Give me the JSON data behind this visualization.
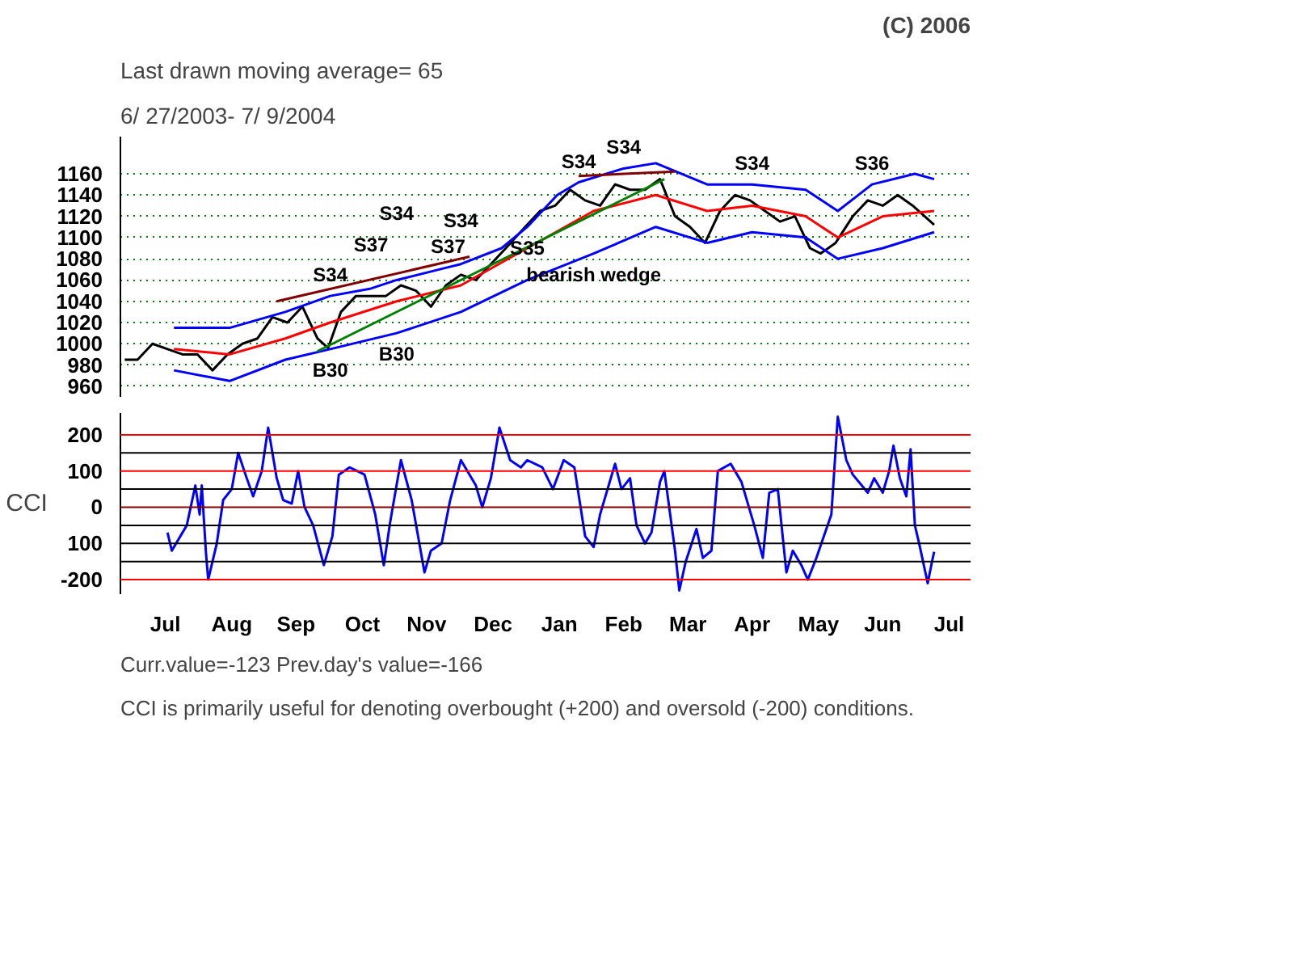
{
  "chart_data": [
    {
      "type": "line",
      "title": "Last drawn moving average= 65",
      "subtitle": "6/ 27/2003- 7/ 9/2004",
      "annotations": [
        "(C) 2006",
        {
          "text": "S34",
          "x": "2003-10-01",
          "y": 1045
        },
        {
          "text": "S37",
          "x": "2003-10-20",
          "y": 1052
        },
        {
          "text": "S34",
          "x": "2003-11-01",
          "y": 1060
        },
        {
          "text": "S37",
          "x": "2003-11-25",
          "y": 1072
        },
        {
          "text": "S34",
          "x": "2003-12-01",
          "y": 1075
        },
        {
          "text": "S35",
          "x": "2004-01-01",
          "y": 1110
        },
        {
          "text": "S34",
          "x": "2004-01-25",
          "y": 1152
        },
        {
          "text": "S34",
          "x": "2004-02-15",
          "y": 1165
        },
        {
          "text": "S34",
          "x": "2004-04-15",
          "y": 1150
        },
        {
          "text": "S36",
          "x": "2004-06-10",
          "y": 1150
        },
        {
          "text": "bearish wedge",
          "x": "2004-02-01",
          "y": 1085
        },
        {
          "text": "B30",
          "x": "2003-10-01",
          "y": 995
        },
        {
          "text": "B30",
          "x": "2003-11-01",
          "y": 1010
        }
      ],
      "xlim": [
        "2003-06-25",
        "2004-07-26"
      ],
      "ylim": [
        950,
        1195
      ],
      "yticks": [
        960,
        980,
        1000,
        1020,
        1040,
        1060,
        1080,
        1100,
        1120,
        1140,
        1160
      ],
      "tick_labels": "y",
      "grid": "y",
      "marker": "none",
      "line_style": "solid",
      "series": [
        {
          "color": "#000000",
          "x": [
            "2003-06-27",
            "2003-07-03",
            "2003-07-10",
            "2003-07-17",
            "2003-07-24",
            "2003-07-31",
            "2003-08-07",
            "2003-08-14",
            "2003-08-21",
            "2003-08-28",
            "2003-09-04",
            "2003-09-11",
            "2003-09-18",
            "2003-09-25",
            "2003-09-30",
            "2003-10-06",
            "2003-10-13",
            "2003-10-20",
            "2003-10-27",
            "2003-11-03",
            "2003-11-10",
            "2003-11-17",
            "2003-11-24",
            "2003-12-01",
            "2003-12-08",
            "2003-12-15",
            "2003-12-22",
            "2003-12-31",
            "2004-01-07",
            "2004-01-14",
            "2004-01-21",
            "2004-01-28",
            "2004-02-04",
            "2004-02-11",
            "2004-02-18",
            "2004-02-25",
            "2004-03-03",
            "2004-03-10",
            "2004-03-17",
            "2004-03-24",
            "2004-03-31",
            "2004-04-07",
            "2004-04-14",
            "2004-04-21",
            "2004-04-28",
            "2004-05-05",
            "2004-05-12",
            "2004-05-17",
            "2004-05-24",
            "2004-06-01",
            "2004-06-08",
            "2004-06-15",
            "2004-06-22",
            "2004-06-29",
            "2004-07-09"
          ],
          "values": [
            985,
            985,
            1000,
            995,
            990,
            990,
            975,
            990,
            1000,
            1005,
            1025,
            1020,
            1035,
            1005,
            996,
            1030,
            1045,
            1045,
            1045,
            1055,
            1050,
            1035,
            1055,
            1065,
            1060,
            1075,
            1090,
            1110,
            1125,
            1130,
            1145,
            1135,
            1130,
            1150,
            1145,
            1145,
            1155,
            1120,
            1110,
            1095,
            1125,
            1140,
            1135,
            1125,
            1115,
            1120,
            1090,
            1085,
            1095,
            1120,
            1135,
            1130,
            1140,
            1130,
            1112
          ]
        },
        {
          "color": "#0000ff",
          "x": [
            "2003-07-20",
            "2003-08-15",
            "2003-09-10",
            "2003-10-01",
            "2003-10-20",
            "2003-11-01",
            "2003-11-25",
            "2003-12-01",
            "2003-12-20",
            "2004-01-01",
            "2004-01-15",
            "2004-01-25",
            "2004-02-15",
            "2004-03-01",
            "2004-03-25",
            "2004-04-15",
            "2004-05-10",
            "2004-05-25",
            "2004-06-10",
            "2004-06-30",
            "2004-07-09"
          ],
          "values": [
            1015,
            1015,
            1030,
            1045,
            1052,
            1060,
            1072,
            1075,
            1090,
            1110,
            1140,
            1152,
            1165,
            1170,
            1150,
            1150,
            1145,
            1125,
            1150,
            1160,
            1155
          ]
        },
        {
          "color": "#ff0000",
          "x": [
            "2003-07-20",
            "2003-08-15",
            "2003-09-10",
            "2003-10-01",
            "2003-11-01",
            "2003-12-01",
            "2004-01-01",
            "2004-02-01",
            "2004-03-01",
            "2004-03-25",
            "2004-04-15",
            "2004-05-10",
            "2004-05-25",
            "2004-06-15",
            "2004-07-09"
          ],
          "values": [
            995,
            990,
            1005,
            1020,
            1040,
            1055,
            1090,
            1125,
            1140,
            1125,
            1130,
            1120,
            1100,
            1120,
            1125
          ]
        },
        {
          "color": "#0000ff",
          "x": [
            "2003-07-20",
            "2003-08-15",
            "2003-09-10",
            "2003-10-01",
            "2003-11-01",
            "2003-12-01",
            "2004-01-01",
            "2004-02-01",
            "2004-03-01",
            "2004-03-25",
            "2004-04-15",
            "2004-05-10",
            "2004-05-25",
            "2004-06-15",
            "2004-07-09"
          ],
          "values": [
            975,
            965,
            985,
            995,
            1010,
            1030,
            1060,
            1085,
            1110,
            1095,
            1105,
            1100,
            1080,
            1090,
            1105
          ]
        },
        {
          "color": "#800000",
          "x": [
            "2003-09-06",
            "2003-12-05"
          ],
          "values": [
            1040,
            1082
          ]
        },
        {
          "color": "#800000",
          "x": [
            "2004-01-25",
            "2004-03-10"
          ],
          "values": [
            1158,
            1162
          ]
        },
        {
          "color": "#008000",
          "x": [
            "2003-09-25",
            "2004-03-05"
          ],
          "values": [
            993,
            1155
          ]
        }
      ]
    },
    {
      "type": "line",
      "ylabel": "CCI",
      "annotations": [
        "Curr.value=-123 Prev.day's value=-166",
        "CCI is primarily useful for denoting overbought (+200) and oversold (-200) conditions."
      ],
      "xlim": [
        "2003-06-25",
        "2004-07-26"
      ],
      "xticks": [
        {
          "value": "2003-07-16",
          "label": "Jul"
        },
        {
          "value": "2003-08-16",
          "label": "Aug"
        },
        {
          "value": "2003-09-15",
          "label": "Sep"
        },
        {
          "value": "2003-10-16",
          "label": "Oct"
        },
        {
          "value": "2003-11-15",
          "label": "Nov"
        },
        {
          "value": "2003-12-16",
          "label": "Dec"
        },
        {
          "value": "2004-01-16",
          "label": "Jan"
        },
        {
          "value": "2004-02-15",
          "label": "Feb"
        },
        {
          "value": "2004-03-16",
          "label": "Mar"
        },
        {
          "value": "2004-04-15",
          "label": "Apr"
        },
        {
          "value": "2004-05-16",
          "label": "May"
        },
        {
          "value": "2004-06-15",
          "label": "Jun"
        },
        {
          "value": "2004-07-16",
          "label": "Jul"
        }
      ],
      "ylim": [
        -240,
        260
      ],
      "yticks": [
        200,
        100,
        0,
        {
          "value": -100,
          "label": "100"
        },
        -200
      ],
      "marker": "none",
      "line_style": "solid",
      "ref_lines": [
        {
          "axis": "y",
          "value": 200,
          "color": "#ff0000"
        },
        {
          "axis": "y",
          "value": 150,
          "color": "#000000"
        },
        {
          "axis": "y",
          "value": 100,
          "color": "#ff0000"
        },
        {
          "axis": "y",
          "value": 50,
          "color": "#000000"
        },
        {
          "axis": "y",
          "value": 0,
          "color": "#800000"
        },
        {
          "axis": "y",
          "value": -50,
          "color": "#000000"
        },
        {
          "axis": "y",
          "value": -100,
          "color": "#000000"
        },
        {
          "axis": "y",
          "value": -150,
          "color": "#000000"
        },
        {
          "axis": "y",
          "value": -200,
          "color": "#ff0000"
        }
      ],
      "series": [
        {
          "color": "#0000ff",
          "x": [
            "2003-07-17",
            "2003-07-19",
            "2003-07-26",
            "2003-07-30",
            "2003-08-01",
            "2003-08-02",
            "2003-08-04",
            "2003-08-05",
            "2003-08-09",
            "2003-08-12",
            "2003-08-16",
            "2003-08-19",
            "2003-08-23",
            "2003-08-26",
            "2003-08-30",
            "2003-09-02",
            "2003-09-06",
            "2003-09-09",
            "2003-09-13",
            "2003-09-16",
            "2003-09-19",
            "2003-09-23",
            "2003-09-28",
            "2003-10-02",
            "2003-10-05",
            "2003-10-10",
            "2003-10-17",
            "2003-10-22",
            "2003-10-26",
            "2003-10-29",
            "2003-11-03",
            "2003-11-08",
            "2003-11-14",
            "2003-11-17",
            "2003-11-22",
            "2003-11-26",
            "2003-12-01",
            "2003-12-08",
            "2003-12-11",
            "2003-12-15",
            "2003-12-19",
            "2003-12-24",
            "2003-12-29",
            "2004-01-01",
            "2004-01-08",
            "2004-01-13",
            "2004-01-18",
            "2004-01-23",
            "2004-01-28",
            "2004-02-01",
            "2004-02-04",
            "2004-02-11",
            "2004-02-14",
            "2004-02-18",
            "2004-02-21",
            "2004-02-25",
            "2004-02-28",
            "2004-03-03",
            "2004-03-05",
            "2004-03-10",
            "2004-03-12",
            "2004-03-15",
            "2004-03-20",
            "2004-03-23",
            "2004-03-27",
            "2004-03-30",
            "2004-04-05",
            "2004-04-10",
            "2004-04-16",
            "2004-04-20",
            "2004-04-23",
            "2004-04-27",
            "2004-05-01",
            "2004-05-04",
            "2004-05-08",
            "2004-05-11",
            "2004-05-15",
            "2004-05-22",
            "2004-05-25",
            "2004-05-29",
            "2004-06-01",
            "2004-06-08",
            "2004-06-11",
            "2004-06-15",
            "2004-06-18",
            "2004-06-20",
            "2004-06-23",
            "2004-06-26",
            "2004-06-28",
            "2004-06-30",
            "2004-07-02",
            "2004-07-06",
            "2004-07-08",
            "2004-07-09"
          ],
          "values": [
            -70,
            -120,
            -50,
            60,
            -20,
            60,
            -130,
            -200,
            -100,
            20,
            50,
            150,
            80,
            30,
            100,
            220,
            80,
            20,
            10,
            100,
            0,
            -50,
            -160,
            -80,
            90,
            110,
            90,
            -20,
            -160,
            -40,
            130,
            20,
            -180,
            -120,
            -100,
            20,
            130,
            60,
            0,
            80,
            220,
            130,
            110,
            130,
            110,
            50,
            130,
            110,
            -80,
            -110,
            -20,
            120,
            50,
            80,
            -50,
            -100,
            -70,
            70,
            100,
            -120,
            -230,
            -150,
            -60,
            -140,
            -120,
            100,
            120,
            70,
            -50,
            -140,
            40,
            50,
            -180,
            -120,
            -160,
            -200,
            -140,
            -20,
            250,
            130,
            90,
            40,
            80,
            40,
            100,
            170,
            80,
            30,
            160,
            -50,
            -100,
            -210,
            -150,
            -123
          ]
        }
      ]
    }
  ]
}
